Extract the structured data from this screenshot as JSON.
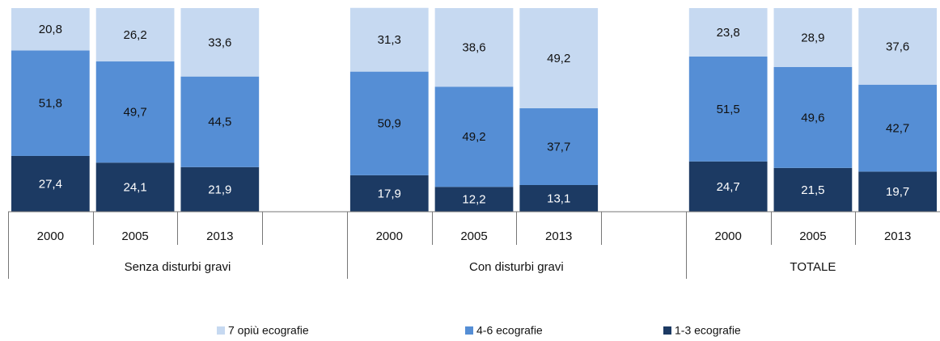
{
  "chart_data": {
    "type": "stacked-bar",
    "categories": [
      "2000",
      "2005",
      "2013",
      null,
      "2000",
      "2005",
      "2013",
      null,
      "2000",
      "2005",
      "2013"
    ],
    "groups": [
      "Senza disturbi gravi",
      "Con disturbi gravi",
      "TOTALE"
    ],
    "ylim": [
      0,
      100
    ],
    "series": [
      {
        "name": "1-3 ecografie",
        "color": "#1c3a63",
        "values": [
          27.4,
          24.1,
          21.9,
          null,
          17.9,
          12.2,
          13.1,
          null,
          24.7,
          21.5,
          19.7
        ],
        "value_labels": [
          "27,4",
          "24,1",
          "21,9",
          null,
          "17,9",
          "12,2",
          "13,1",
          null,
          "24,7",
          "21,5",
          "19,7"
        ]
      },
      {
        "name": "4-6 ecografie",
        "color": "#558ed5",
        "values": [
          51.8,
          49.7,
          44.5,
          null,
          50.9,
          49.2,
          37.7,
          null,
          51.5,
          49.6,
          42.7
        ],
        "value_labels": [
          "51,8",
          "49,7",
          "44,5",
          null,
          "50,9",
          "49,2",
          "37,7",
          null,
          "51,5",
          "49,6",
          "42,7"
        ]
      },
      {
        "name": "7 opiù ecografie",
        "color": "#c6d9f1",
        "values": [
          20.8,
          26.2,
          33.6,
          null,
          31.3,
          38.6,
          49.2,
          null,
          23.8,
          28.9,
          37.6
        ],
        "value_labels": [
          "20,8",
          "26,2",
          "33,6",
          null,
          "31,3",
          "38,6",
          "49,2",
          null,
          "23,8",
          "28,9",
          "37,6"
        ]
      }
    ]
  }
}
